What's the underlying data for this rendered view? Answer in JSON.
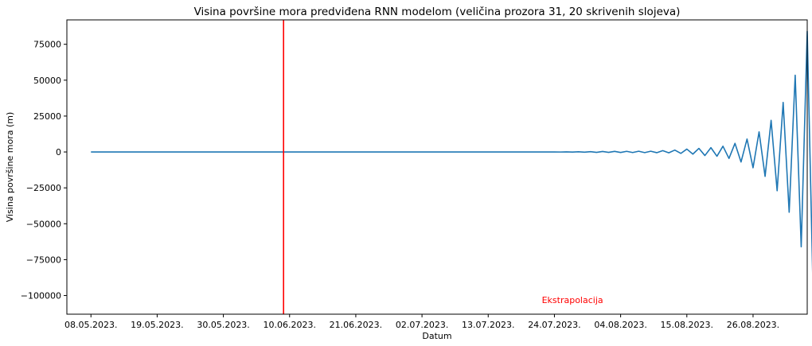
{
  "chart_data": {
    "type": "line",
    "title": "Visina površine mora predviđena RNN modelom (veličina prozora 31, 20 skrivenih slojeva)",
    "xlabel": "Datum",
    "ylabel": "Visina površine mora (m)",
    "x_ticks": [
      "08.05.2023.",
      "19.05.2023.",
      "30.05.2023.",
      "10.06.2023.",
      "21.06.2023.",
      "02.07.2023.",
      "13.07.2023.",
      "24.07.2023.",
      "04.08.2023.",
      "15.08.2023.",
      "26.08.2023."
    ],
    "xlim": [
      "2023-05-04",
      "2023-09-04"
    ],
    "y_ticks": [
      75000,
      50000,
      25000,
      0,
      -25000,
      -50000,
      -75000,
      -100000
    ],
    "ylim": [
      -113000,
      92000
    ],
    "grid": false,
    "vertical_line": {
      "x": "2023-06-09",
      "color": "#ff0000"
    },
    "annotation": {
      "text": "Ekstrapolacija",
      "x": "2023-07-27",
      "y": -103000,
      "color": "#ff0000"
    },
    "series": [
      {
        "color": "#1f77b4",
        "points": [
          [
            "2023-05-08",
            0
          ],
          [
            "2023-07-23",
            0
          ],
          [
            "2023-07-24",
            30
          ],
          [
            "2023-07-25",
            -40
          ],
          [
            "2023-07-26",
            60
          ],
          [
            "2023-07-27",
            -80
          ],
          [
            "2023-07-28",
            120
          ],
          [
            "2023-07-29",
            -160
          ],
          [
            "2023-07-30",
            220
          ],
          [
            "2023-07-31",
            -300
          ],
          [
            "2023-08-01",
            350
          ],
          [
            "2023-08-02",
            -300
          ],
          [
            "2023-08-03",
            400
          ],
          [
            "2023-08-04",
            -350
          ],
          [
            "2023-08-05",
            450
          ],
          [
            "2023-08-06",
            -400
          ],
          [
            "2023-08-07",
            500
          ],
          [
            "2023-08-08",
            -450
          ],
          [
            "2023-08-09",
            500
          ],
          [
            "2023-08-10",
            -500
          ],
          [
            "2023-08-11",
            900
          ],
          [
            "2023-08-12",
            -600
          ],
          [
            "2023-08-13",
            1300
          ],
          [
            "2023-08-14",
            -1000
          ],
          [
            "2023-08-15",
            2000
          ],
          [
            "2023-08-16",
            -1500
          ],
          [
            "2023-08-17",
            2500
          ],
          [
            "2023-08-18",
            -2500
          ],
          [
            "2023-08-19",
            3000
          ],
          [
            "2023-08-20",
            -3000
          ],
          [
            "2023-08-21",
            4000
          ],
          [
            "2023-08-22",
            -4500
          ],
          [
            "2023-08-23",
            6000
          ],
          [
            "2023-08-24",
            -7000
          ],
          [
            "2023-08-25",
            9000
          ],
          [
            "2023-08-26",
            -11000
          ],
          [
            "2023-08-27",
            14000
          ],
          [
            "2023-08-28",
            -17000
          ],
          [
            "2023-08-29",
            22000
          ],
          [
            "2023-08-30",
            -27000
          ],
          [
            "2023-08-31",
            34500
          ],
          [
            "2023-09-01",
            -42000
          ],
          [
            "2023-09-02",
            53500
          ],
          [
            "2023-09-03",
            -66000
          ],
          [
            "2023-09-04",
            84000
          ],
          [
            "2023-09-05",
            -103000
          ]
        ]
      }
    ]
  }
}
